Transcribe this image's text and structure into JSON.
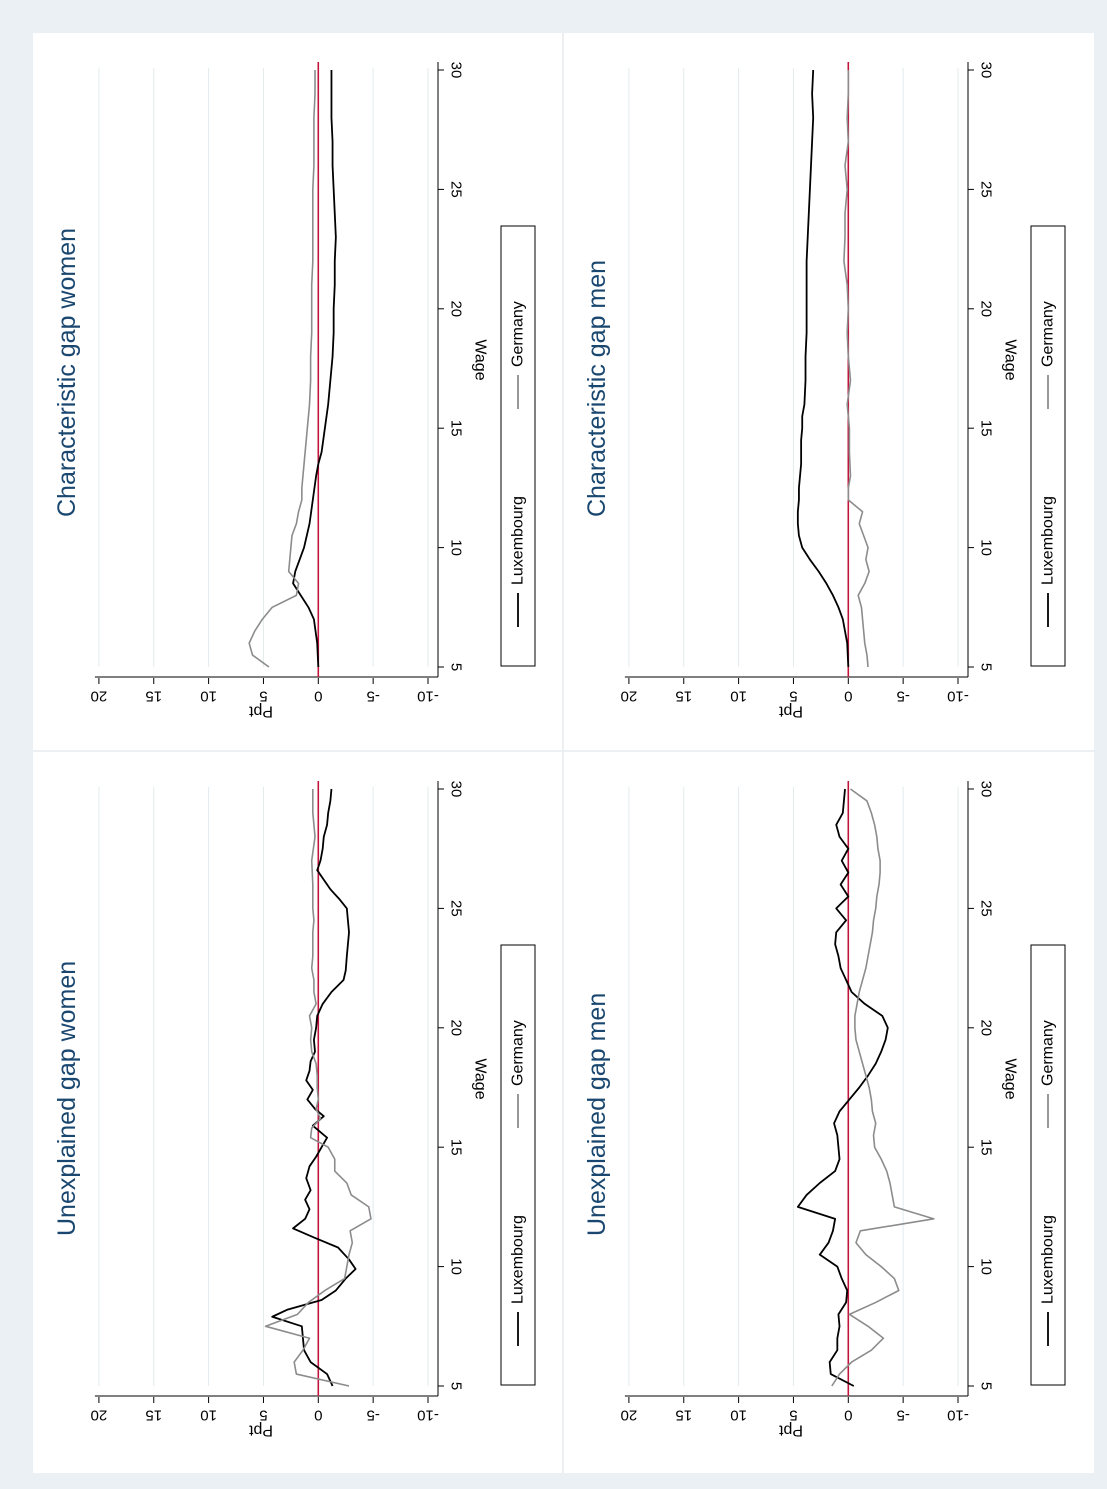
{
  "colors": {
    "page_background": "#eaf0f3",
    "panel_background": "#ffffff",
    "title_color": "#1a476f",
    "luxembourg_line": "#000000",
    "germany_line": "#8c8c8c",
    "zero_line": "#c0143c",
    "grid": "#e3ebee",
    "panel_divider": "#e6ecef"
  },
  "figure": {
    "orientation": "rotated 90 degrees clockwise"
  },
  "chart_data": [
    {
      "type": "line",
      "title": "Unexplained gap women",
      "xlabel": "Wage",
      "ylabel": "Ppt",
      "xlim": [
        5,
        30
      ],
      "ylim": [
        -10,
        20
      ],
      "xticks": [
        "5",
        "10",
        "15",
        "20",
        "25",
        "30"
      ],
      "yticks": [
        "-10",
        "-5",
        "0",
        "5",
        "10",
        "15",
        "20"
      ],
      "grid": true,
      "reference_line_y": 0,
      "legend": {
        "placement": "bottom",
        "entries": [
          "Luxembourg",
          "Germany"
        ]
      },
      "series": [
        {
          "name": "Luxembourg",
          "x": [
            5,
            5.5,
            6,
            6.5,
            7,
            7.5,
            7.9,
            8.2,
            8.6,
            9,
            9.5,
            9.9,
            10.3,
            10.8,
            11.2,
            11.6,
            12,
            12.4,
            12.8,
            13.2,
            13.7,
            14.2,
            14.6,
            15,
            15.4,
            15.9,
            16.3,
            16.6,
            17,
            17.4,
            17.8,
            18.2,
            18.6,
            19,
            19.5,
            20,
            20.5,
            21,
            21.5,
            22,
            22.4,
            23,
            23.5,
            24,
            24.5,
            25,
            25.4,
            25.8,
            26.2,
            26.6,
            27,
            27.5,
            28,
            28.5,
            29,
            29.5,
            30
          ],
          "y": [
            -1.3,
            -0.8,
            0.7,
            1.3,
            1.4,
            1.5,
            4.2,
            2.8,
            -0.3,
            -1.6,
            -2.5,
            -3.4,
            -2.8,
            -1.8,
            0.3,
            2.3,
            1.2,
            0.8,
            1.2,
            0.7,
            1.1,
            0.8,
            0.2,
            -0.3,
            -0.8,
            0.5,
            -0.5,
            0.3,
            1.0,
            0.5,
            1.1,
            0.8,
            0.7,
            0.3,
            0.4,
            0.2,
            0.1,
            -0.4,
            -1.2,
            -2.3,
            -2.5,
            -2.6,
            -2.7,
            -2.8,
            -2.7,
            -2.6,
            -1.9,
            -1.1,
            -0.5,
            0.1,
            -0.2,
            -0.4,
            -0.5,
            -0.8,
            -0.9,
            -1.1,
            -1.2
          ]
        },
        {
          "name": "Germany",
          "x": [
            5,
            5.5,
            6,
            6.5,
            7,
            7.5,
            8,
            8.5,
            9,
            9.5,
            10,
            10.5,
            11,
            11.5,
            12,
            12.5,
            13,
            13.5,
            14,
            14.5,
            15,
            15.4,
            15.8,
            16.2,
            16.6,
            17,
            17.5,
            18,
            18.5,
            19,
            19.5,
            20,
            20.5,
            21,
            21.5,
            22,
            22.5,
            23,
            23.5,
            24,
            24.5,
            25,
            26,
            27,
            28,
            29,
            30
          ],
          "y": [
            -2.8,
            2.0,
            2.2,
            1.4,
            0.8,
            4.8,
            1.9,
            0.9,
            -0.6,
            -2.4,
            -2.6,
            -2.8,
            -3.1,
            -2.9,
            -4.8,
            -4.6,
            -3.0,
            -2.6,
            -1.5,
            -1.5,
            -0.9,
            0.7,
            0.6,
            -0.2,
            0.2,
            0.0,
            0.1,
            0.1,
            0.2,
            0.6,
            0.7,
            0.6,
            0.8,
            0.2,
            0.4,
            0.4,
            0.6,
            0.5,
            0.5,
            0.5,
            0.4,
            0.5,
            0.5,
            0.6,
            0.3,
            0.5,
            0.5
          ]
        }
      ]
    },
    {
      "type": "line",
      "title": "Characteristic gap women",
      "xlabel": "Wage",
      "ylabel": "Ppt",
      "xlim": [
        5,
        30
      ],
      "ylim": [
        -10,
        20
      ],
      "xticks": [
        "5",
        "10",
        "15",
        "20",
        "25",
        "30"
      ],
      "yticks": [
        "-10",
        "-5",
        "0",
        "5",
        "10",
        "15",
        "20"
      ],
      "grid": true,
      "reference_line_y": 0,
      "legend": {
        "placement": "bottom",
        "entries": [
          "Luxembourg",
          "Germany"
        ]
      },
      "series": [
        {
          "name": "Luxembourg",
          "x": [
            5,
            6,
            7,
            7.5,
            8,
            8.5,
            9,
            9.5,
            10,
            11,
            12,
            13,
            13.5,
            14,
            15,
            16,
            17,
            18,
            19,
            20,
            21,
            22,
            23,
            24,
            25,
            26,
            27,
            28,
            29,
            30
          ],
          "y": [
            0.0,
            0.1,
            0.4,
            0.9,
            1.6,
            2.3,
            2.1,
            1.7,
            1.3,
            0.8,
            0.5,
            0.2,
            0.0,
            -0.3,
            -0.6,
            -0.9,
            -1.1,
            -1.3,
            -1.4,
            -1.4,
            -1.5,
            -1.5,
            -1.6,
            -1.5,
            -1.4,
            -1.3,
            -1.3,
            -1.2,
            -1.2,
            -1.2
          ]
        },
        {
          "name": "Germany",
          "x": [
            5,
            5.5,
            6,
            6.5,
            7,
            7.5,
            8,
            8.5,
            9,
            9.5,
            10,
            10.5,
            11,
            11.5,
            12,
            12.5,
            13,
            13.5,
            14,
            15,
            16,
            17,
            18,
            19,
            20,
            21,
            22,
            23,
            24,
            25,
            26,
            27,
            28,
            29,
            30
          ],
          "y": [
            4.5,
            6.0,
            6.3,
            5.8,
            5.1,
            4.2,
            2.0,
            1.8,
            2.7,
            2.6,
            2.5,
            2.4,
            2.0,
            1.8,
            1.5,
            1.5,
            1.4,
            1.3,
            1.2,
            1.0,
            0.8,
            0.7,
            0.7,
            0.6,
            0.6,
            0.6,
            0.5,
            0.5,
            0.5,
            0.5,
            0.4,
            0.4,
            0.4,
            0.3,
            0.3
          ]
        }
      ]
    },
    {
      "type": "line",
      "title": "Unexplained gap men",
      "xlabel": "Wage",
      "ylabel": "Ppt",
      "xlim": [
        5,
        30
      ],
      "ylim": [
        -10,
        20
      ],
      "xticks": [
        "5",
        "10",
        "15",
        "20",
        "25",
        "30"
      ],
      "yticks": [
        "-10",
        "-5",
        "0",
        "5",
        "10",
        "15",
        "20"
      ],
      "grid": true,
      "reference_line_y": 0,
      "legend": {
        "placement": "bottom",
        "entries": [
          "Luxembourg",
          "Germany"
        ]
      },
      "series": [
        {
          "name": "Luxembourg",
          "x": [
            5,
            5.5,
            6,
            6.5,
            7,
            7.5,
            8,
            8.5,
            9,
            9.5,
            10,
            10.5,
            11,
            11.5,
            12,
            12.5,
            13,
            13.5,
            14,
            14.5,
            15,
            15.5,
            16,
            16.5,
            17,
            17.5,
            18,
            18.5,
            19,
            19.5,
            20,
            20.5,
            21,
            21.5,
            22,
            22.5,
            23,
            23.5,
            24,
            24.5,
            25,
            25.5,
            26,
            26.5,
            27,
            27.5,
            28,
            28.5,
            29,
            29.5,
            30
          ],
          "y": [
            -0.5,
            1.6,
            1.7,
            1.0,
            1.0,
            0.8,
            0.9,
            0.2,
            0.1,
            0.6,
            1.0,
            2.6,
            1.8,
            1.4,
            1.2,
            4.6,
            3.8,
            2.6,
            1.2,
            0.8,
            0.9,
            1.0,
            1.3,
            0.8,
            -0.1,
            -1.0,
            -1.8,
            -2.5,
            -3.0,
            -3.4,
            -3.6,
            -3.1,
            -1.5,
            -0.3,
            0.2,
            0.7,
            0.9,
            1.2,
            1.1,
            0.2,
            1.1,
            0.0,
            0.7,
            0.0,
            0.6,
            0.0,
            0.8,
            1.1,
            0.5,
            0.4,
            0.3
          ]
        },
        {
          "name": "Germany",
          "x": [
            5,
            5.5,
            6,
            6.5,
            7,
            7.5,
            8,
            8.5,
            9,
            9.5,
            10,
            10.5,
            11,
            11.5,
            12,
            12.5,
            13,
            13.5,
            14,
            14.5,
            15,
            15.5,
            16,
            16.5,
            17,
            17.5,
            18,
            18.5,
            19,
            19.5,
            20,
            20.5,
            21,
            21.5,
            22,
            22.5,
            23,
            23.5,
            24,
            24.5,
            25,
            25.5,
            26,
            26.5,
            27,
            27.5,
            28,
            28.5,
            29,
            29.5,
            30
          ],
          "y": [
            1.5,
            0.8,
            -0.3,
            -2.1,
            -3.2,
            -1.8,
            -0.1,
            -2.5,
            -4.6,
            -4.2,
            -3.0,
            -1.6,
            -0.7,
            -1.1,
            -7.8,
            -4.2,
            -4.0,
            -3.8,
            -3.5,
            -3.0,
            -2.4,
            -2.3,
            -2.5,
            -2.2,
            -2.1,
            -1.9,
            -1.6,
            -1.3,
            -1.0,
            -0.7,
            -0.6,
            -0.6,
            -0.8,
            -1.0,
            -1.3,
            -1.6,
            -1.8,
            -2.0,
            -2.2,
            -2.3,
            -2.5,
            -2.6,
            -2.8,
            -2.9,
            -2.9,
            -2.7,
            -2.6,
            -2.4,
            -2.1,
            -1.7,
            -0.2
          ]
        }
      ]
    },
    {
      "type": "line",
      "title": "Characteristic gap men",
      "xlabel": "Wage",
      "ylabel": "Ppt",
      "xlim": [
        5,
        30
      ],
      "ylim": [
        -10,
        20
      ],
      "xticks": [
        "5",
        "10",
        "15",
        "20",
        "25",
        "30"
      ],
      "yticks": [
        "-10",
        "-5",
        "0",
        "5",
        "10",
        "15",
        "20"
      ],
      "grid": true,
      "reference_line_y": 0,
      "legend": {
        "placement": "bottom",
        "entries": [
          "Luxembourg",
          "Germany"
        ]
      },
      "series": [
        {
          "name": "Luxembourg",
          "x": [
            5,
            6,
            7,
            7.5,
            8,
            8.5,
            9,
            9.5,
            10,
            10.5,
            11,
            11.5,
            12,
            12.5,
            13,
            13.5,
            14,
            14.5,
            15,
            15.5,
            16,
            17,
            18,
            19,
            20,
            21,
            22,
            23,
            24,
            25,
            26,
            27,
            28,
            29,
            30
          ],
          "y": [
            0.0,
            0.1,
            0.5,
            0.9,
            1.4,
            2.0,
            2.7,
            3.5,
            4.2,
            4.5,
            4.6,
            4.6,
            4.5,
            4.5,
            4.4,
            4.3,
            4.3,
            4.3,
            4.2,
            4.2,
            4.0,
            3.9,
            3.9,
            3.8,
            3.8,
            3.8,
            3.8,
            3.7,
            3.6,
            3.5,
            3.4,
            3.3,
            3.2,
            3.3,
            3.2
          ]
        },
        {
          "name": "Germany",
          "x": [
            5,
            5.5,
            6,
            6.5,
            7,
            7.5,
            8,
            8.5,
            9,
            9.5,
            10,
            10.5,
            11,
            11.5,
            12,
            12.5,
            13,
            14,
            15,
            16,
            17,
            18,
            19,
            20,
            21,
            22,
            23,
            24,
            25,
            26,
            27,
            28,
            29,
            30
          ],
          "y": [
            -1.8,
            -1.7,
            -1.5,
            -1.4,
            -1.3,
            -1.2,
            -0.9,
            -1.5,
            -1.9,
            -1.6,
            -1.8,
            -1.4,
            -1.0,
            -1.3,
            0.0,
            0.0,
            -0.2,
            -0.1,
            -0.1,
            0.1,
            -0.2,
            0.0,
            0.1,
            0.0,
            0.1,
            0.4,
            0.3,
            0.3,
            0.1,
            0.3,
            0.0,
            0.1,
            0.0,
            0.0
          ]
        }
      ]
    }
  ]
}
